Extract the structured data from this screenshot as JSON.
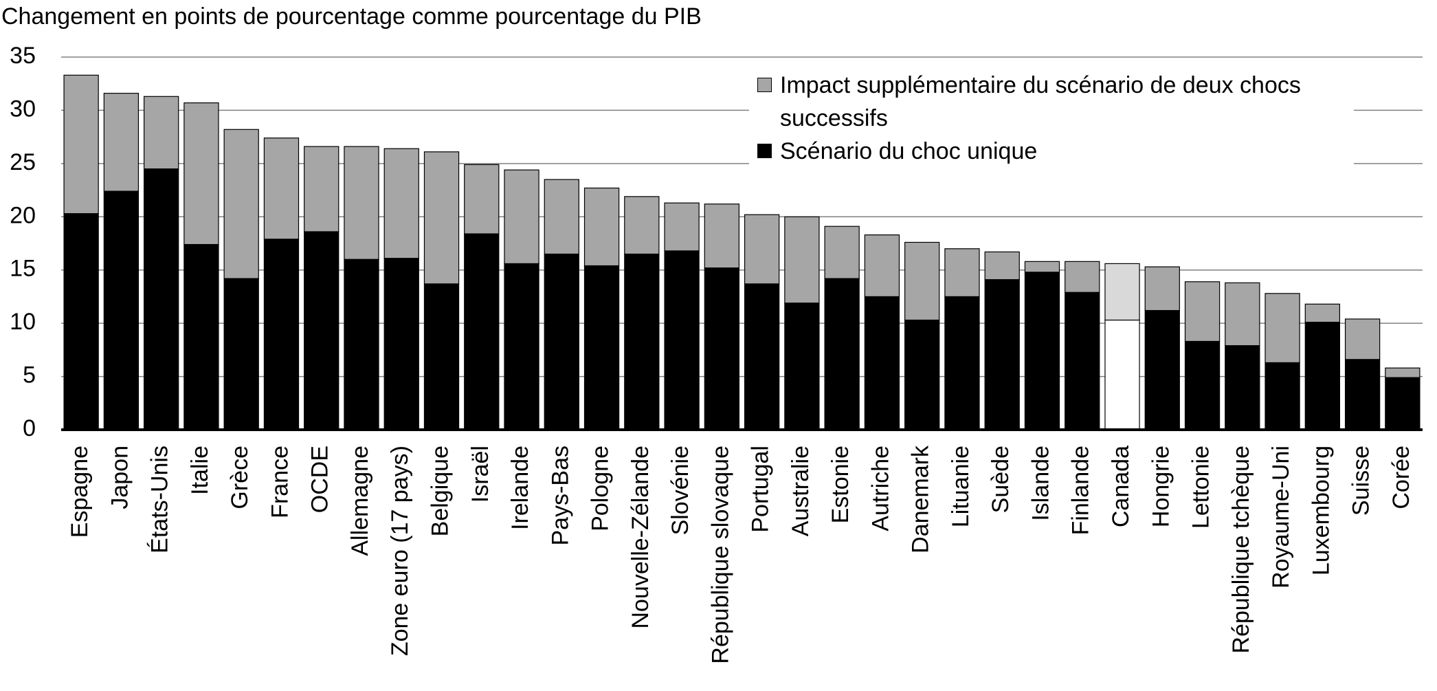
{
  "chart_data": {
    "type": "stacked_bar",
    "title": "Changement en points de pourcentage comme pourcentage du PIB",
    "categories": [
      "Espagne",
      "Japon",
      "États-Unis",
      "Italie",
      "Grèce",
      "France",
      "OCDE",
      "Allemagne",
      "Zone euro (17 pays)",
      "Belgique",
      "Israël",
      "Irelande",
      "Pays-Bas",
      "Pologne",
      "Nouvelle-Zélande",
      "Slovénie",
      "République slovaque",
      "Portugal",
      "Australie",
      "Estonie",
      "Autriche",
      "Danemark",
      "Lituanie",
      "Suède",
      "Islande",
      "Finlande",
      "Canada",
      "Hongrie",
      "Lettonie",
      "République tchèque",
      "Royaume-Uni",
      "Luxembourg",
      "Suisse",
      "Corée"
    ],
    "series": [
      {
        "name": "Scénario du choc unique",
        "color": "#000000",
        "highlight_color": "#ffffff",
        "values": [
          20.3,
          22.4,
          24.5,
          17.4,
          14.2,
          17.9,
          18.6,
          16.0,
          16.1,
          13.7,
          18.4,
          15.6,
          16.5,
          15.4,
          16.5,
          16.8,
          15.2,
          13.7,
          11.9,
          14.2,
          12.5,
          10.3,
          12.5,
          14.1,
          14.8,
          12.9,
          10.3,
          11.2,
          8.3,
          7.9,
          6.3,
          10.1,
          6.6,
          4.9
        ]
      },
      {
        "name": "Impact supplémentaire du scénario de deux chocs successifs",
        "color": "#a6a6a6",
        "highlight_color": "#d9d9d9",
        "values": [
          13.0,
          9.2,
          6.8,
          13.3,
          14.0,
          9.5,
          8.0,
          10.6,
          10.3,
          12.4,
          6.5,
          8.8,
          7.0,
          7.3,
          5.4,
          4.5,
          6.0,
          6.5,
          8.1,
          4.9,
          5.8,
          7.3,
          4.5,
          2.6,
          1.0,
          2.9,
          5.3,
          4.1,
          5.6,
          5.9,
          6.5,
          1.7,
          3.8,
          0.9
        ]
      }
    ],
    "highlight_category": "Canada",
    "ylim": [
      0,
      35
    ],
    "yticks": [
      0,
      5,
      10,
      15,
      20,
      25,
      30,
      35
    ],
    "grid": true,
    "legend": "top-right"
  }
}
